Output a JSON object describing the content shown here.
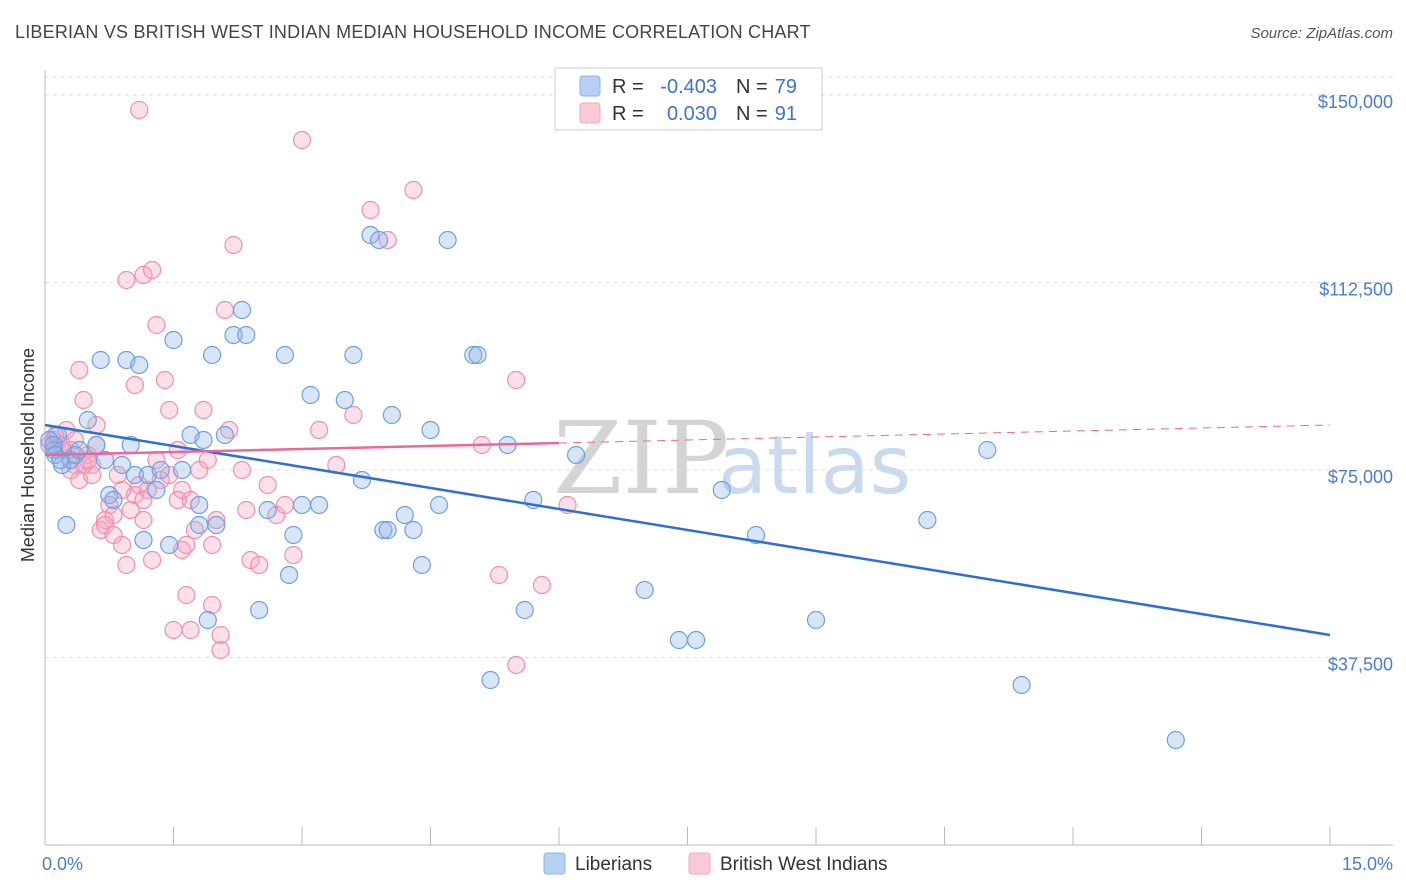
{
  "chart_data": {
    "type": "scatter",
    "title": "LIBERIAN VS BRITISH WEST INDIAN MEDIAN HOUSEHOLD INCOME CORRELATION CHART",
    "source": "Source: ZipAtlas.com",
    "ylabel": "Median Household Income",
    "xlabel": "",
    "xlim": [
      0,
      15
    ],
    "ylim": [
      0,
      155000
    ],
    "x_tick_labels": {
      "min": "0.0%",
      "max": "15.0%"
    },
    "y_ticks": [
      {
        "value": 37500,
        "label": "$37,500"
      },
      {
        "value": 75000,
        "label": "$75,000"
      },
      {
        "value": 112500,
        "label": "$112,500"
      },
      {
        "value": 150000,
        "label": "$150,000"
      }
    ],
    "grid": true,
    "watermark": {
      "zip": "ZIP",
      "atlas": "atlas"
    },
    "legend": {
      "rows": [
        {
          "r_label": "R =",
          "r_value": "-0.403",
          "n_label": "N =",
          "n_value": "79"
        },
        {
          "r_label": "R =",
          "r_value": "0.030",
          "n_label": "N =",
          "n_value": "91"
        }
      ],
      "placement": "top-center"
    },
    "series": [
      {
        "name": "Liberians",
        "color": "#8fb5e8",
        "line_color": "#2f6fcf",
        "trend": {
          "x0": 0.0,
          "y0": 84000,
          "x1": 15.0,
          "y1": 42000,
          "dashed_from": null
        },
        "points": [
          [
            0.1,
            79000
          ],
          [
            0.15,
            82000
          ],
          [
            0.2,
            76000
          ],
          [
            0.25,
            64000
          ],
          [
            0.3,
            77000
          ],
          [
            0.35,
            78000
          ],
          [
            0.4,
            79000
          ],
          [
            0.5,
            85000
          ],
          [
            0.6,
            80000
          ],
          [
            0.65,
            97000
          ],
          [
            0.7,
            77000
          ],
          [
            0.75,
            70000
          ],
          [
            0.8,
            69000
          ],
          [
            0.9,
            76000
          ],
          [
            0.95,
            97000
          ],
          [
            1.0,
            80000
          ],
          [
            1.05,
            74000
          ],
          [
            1.1,
            96000
          ],
          [
            1.15,
            61000
          ],
          [
            1.2,
            74000
          ],
          [
            1.3,
            71000
          ],
          [
            1.35,
            75000
          ],
          [
            1.45,
            60000
          ],
          [
            1.5,
            101000
          ],
          [
            1.6,
            75000
          ],
          [
            1.7,
            82000
          ],
          [
            1.8,
            68000
          ],
          [
            1.8,
            64000
          ],
          [
            1.85,
            81000
          ],
          [
            1.9,
            45000
          ],
          [
            1.95,
            98000
          ],
          [
            2.0,
            64000
          ],
          [
            2.1,
            82000
          ],
          [
            2.2,
            102000
          ],
          [
            2.3,
            107000
          ],
          [
            2.35,
            102000
          ],
          [
            2.5,
            47000
          ],
          [
            2.6,
            67000
          ],
          [
            2.8,
            98000
          ],
          [
            2.85,
            54000
          ],
          [
            2.9,
            62000
          ],
          [
            3.0,
            68000
          ],
          [
            3.1,
            90000
          ],
          [
            3.2,
            68000
          ],
          [
            3.5,
            89000
          ],
          [
            3.6,
            98000
          ],
          [
            3.7,
            73000
          ],
          [
            3.8,
            122000
          ],
          [
            3.9,
            121000
          ],
          [
            3.95,
            63000
          ],
          [
            4.0,
            63000
          ],
          [
            4.05,
            86000
          ],
          [
            4.2,
            66000
          ],
          [
            4.3,
            63000
          ],
          [
            4.4,
            56000
          ],
          [
            4.5,
            83000
          ],
          [
            4.6,
            68000
          ],
          [
            4.7,
            121000
          ],
          [
            5.0,
            98000
          ],
          [
            5.05,
            98000
          ],
          [
            5.2,
            33000
          ],
          [
            5.4,
            80000
          ],
          [
            5.6,
            47000
          ],
          [
            5.7,
            69000
          ],
          [
            6.2,
            78000
          ],
          [
            7.0,
            51000
          ],
          [
            7.4,
            41000
          ],
          [
            7.6,
            41000
          ],
          [
            7.9,
            71000
          ],
          [
            8.3,
            62000
          ],
          [
            9.0,
            45000
          ],
          [
            10.3,
            65000
          ],
          [
            11.0,
            79000
          ],
          [
            11.4,
            32000
          ],
          [
            13.2,
            21000
          ],
          [
            0.05,
            81000
          ],
          [
            0.1,
            80000
          ],
          [
            0.12,
            78000
          ],
          [
            0.18,
            77000
          ]
        ]
      },
      {
        "name": "British West Indians",
        "color": "#f4a7c0",
        "line_color": "#e8699a",
        "trend": {
          "x0": 0.0,
          "y0": 78000,
          "x1": 15.0,
          "y1": 84000,
          "dashed_from": 6.0
        },
        "points": [
          [
            0.05,
            80000
          ],
          [
            0.1,
            81000
          ],
          [
            0.12,
            82000
          ],
          [
            0.15,
            79000
          ],
          [
            0.2,
            80000
          ],
          [
            0.25,
            83000
          ],
          [
            0.3,
            79000
          ],
          [
            0.35,
            76000
          ],
          [
            0.4,
            73000
          ],
          [
            0.45,
            89000
          ],
          [
            0.5,
            78000
          ],
          [
            0.55,
            76000
          ],
          [
            0.6,
            80000
          ],
          [
            0.65,
            63000
          ],
          [
            0.7,
            65000
          ],
          [
            0.75,
            68000
          ],
          [
            0.8,
            66000
          ],
          [
            0.85,
            74000
          ],
          [
            0.9,
            60000
          ],
          [
            0.95,
            56000
          ],
          [
            1.0,
            67000
          ],
          [
            1.05,
            70000
          ],
          [
            1.1,
            72000
          ],
          [
            1.15,
            65000
          ],
          [
            1.2,
            71000
          ],
          [
            1.25,
            57000
          ],
          [
            1.3,
            77000
          ],
          [
            1.35,
            73000
          ],
          [
            1.4,
            93000
          ],
          [
            1.45,
            87000
          ],
          [
            1.5,
            43000
          ],
          [
            1.55,
            69000
          ],
          [
            1.6,
            59000
          ],
          [
            1.65,
            50000
          ],
          [
            1.7,
            69000
          ],
          [
            1.75,
            63000
          ],
          [
            1.8,
            75000
          ],
          [
            1.85,
            87000
          ],
          [
            1.9,
            77000
          ],
          [
            1.95,
            60000
          ],
          [
            2.0,
            65000
          ],
          [
            2.05,
            39000
          ],
          [
            2.1,
            107000
          ],
          [
            2.2,
            120000
          ],
          [
            2.3,
            75000
          ],
          [
            2.35,
            67000
          ],
          [
            2.4,
            57000
          ],
          [
            2.5,
            56000
          ],
          [
            2.6,
            72000
          ],
          [
            2.7,
            66000
          ],
          [
            2.8,
            68000
          ],
          [
            2.9,
            58000
          ],
          [
            3.0,
            141000
          ],
          [
            3.2,
            83000
          ],
          [
            3.4,
            76000
          ],
          [
            3.6,
            86000
          ],
          [
            3.8,
            127000
          ],
          [
            4.0,
            121000
          ],
          [
            4.3,
            131000
          ],
          [
            5.1,
            80000
          ],
          [
            5.3,
            54000
          ],
          [
            5.5,
            93000
          ],
          [
            5.8,
            52000
          ],
          [
            6.1,
            68000
          ],
          [
            5.5,
            36000
          ],
          [
            1.1,
            147000
          ],
          [
            1.3,
            104000
          ],
          [
            1.15,
            114000
          ],
          [
            0.95,
            113000
          ],
          [
            1.25,
            115000
          ],
          [
            2.05,
            42000
          ],
          [
            1.7,
            43000
          ],
          [
            0.4,
            95000
          ],
          [
            0.6,
            84000
          ],
          [
            1.05,
            92000
          ],
          [
            0.55,
            74000
          ],
          [
            1.55,
            79000
          ],
          [
            1.65,
            60000
          ],
          [
            1.95,
            48000
          ],
          [
            2.15,
            83000
          ],
          [
            0.3,
            75000
          ],
          [
            0.2,
            79000
          ],
          [
            0.35,
            81000
          ],
          [
            0.45,
            76000
          ],
          [
            0.5,
            77000
          ],
          [
            0.7,
            64000
          ],
          [
            0.8,
            62000
          ],
          [
            0.9,
            71000
          ],
          [
            1.15,
            69000
          ],
          [
            1.45,
            74000
          ],
          [
            1.6,
            71000
          ]
        ]
      }
    ]
  }
}
